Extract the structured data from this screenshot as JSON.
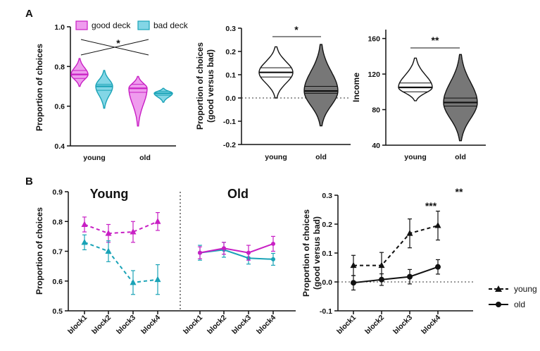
{
  "panel_labels": {
    "a": "A",
    "b": "B"
  },
  "colors": {
    "magenta": "#c81fc4",
    "teal": "#1aa3b7",
    "magenta_fill": "#ef9cee",
    "teal_fill": "#83d6e6",
    "grey": "#777777",
    "black": "#111111"
  },
  "chart_data": [
    {
      "id": "A1",
      "type": "violin",
      "ylabel": "Proportion of choices",
      "ylim": [
        0.4,
        1.0
      ],
      "yticks": [
        "0.4",
        "0.6",
        "0.8",
        "1.0"
      ],
      "categories": [
        "young",
        "old"
      ],
      "legend": [
        "good deck",
        "bad deck"
      ],
      "series": [
        {
          "name": "good deck",
          "young": {
            "median": 0.76,
            "q1": 0.74,
            "q3": 0.78,
            "min": 0.7,
            "max": 0.84
          },
          "old": {
            "median": 0.69,
            "q1": 0.67,
            "q3": 0.71,
            "min": 0.5,
            "max": 0.75
          }
        },
        {
          "name": "bad deck",
          "young": {
            "median": 0.7,
            "q1": 0.68,
            "q3": 0.71,
            "min": 0.59,
            "max": 0.78
          },
          "old": {
            "median": 0.665,
            "q1": 0.655,
            "q3": 0.675,
            "min": 0.62,
            "max": 0.69
          }
        }
      ],
      "significance": "*"
    },
    {
      "id": "A2",
      "type": "violin",
      "ylabel": "Proportion of choices",
      "ylabel2": "(good versus bad)",
      "ylim": [
        -0.2,
        0.3
      ],
      "yticks": [
        "-0.2",
        "-0.1",
        "0.0",
        "0.1",
        "0.2",
        "0.3"
      ],
      "categories": [
        "young",
        "old"
      ],
      "groups": [
        {
          "name": "young",
          "median": 0.11,
          "q1": 0.09,
          "q3": 0.13,
          "min": 0.0,
          "max": 0.22
        },
        {
          "name": "old",
          "median": 0.03,
          "q1": 0.02,
          "q3": 0.05,
          "min": -0.12,
          "max": 0.23
        }
      ],
      "reference_line": 0,
      "significance": "*"
    },
    {
      "id": "A3",
      "type": "violin",
      "ylabel": "Income",
      "ylim": [
        40,
        170
      ],
      "yticks": [
        "40",
        "80",
        "120",
        "160"
      ],
      "categories": [
        "young",
        "old"
      ],
      "groups": [
        {
          "name": "young",
          "median": 105,
          "q1": 100,
          "q3": 110,
          "min": 90,
          "max": 138
        },
        {
          "name": "old",
          "median": 88,
          "q1": 84,
          "q3": 93,
          "min": 45,
          "max": 142
        }
      ],
      "significance": "**"
    },
    {
      "id": "B1",
      "type": "line",
      "ylabel": "Proportion of choices",
      "ylim": [
        0.5,
        0.9
      ],
      "yticks": [
        "0.5",
        "0.6",
        "0.7",
        "0.8",
        "0.9"
      ],
      "categories": [
        "block1",
        "block2",
        "block3",
        "block4"
      ],
      "groups": [
        {
          "title": "Young",
          "series": [
            {
              "deck": "good",
              "values": [
                0.79,
                0.76,
                0.765,
                0.8
              ],
              "errors": [
                0.025,
                0.03,
                0.035,
                0.03
              ]
            },
            {
              "deck": "bad",
              "values": [
                0.73,
                0.7,
                0.595,
                0.605
              ],
              "errors": [
                0.025,
                0.035,
                0.04,
                0.05
              ]
            }
          ]
        },
        {
          "title": "Old",
          "series": [
            {
              "deck": "good",
              "values": [
                0.695,
                0.71,
                0.695,
                0.725
              ],
              "errors": [
                0.02,
                0.02,
                0.025,
                0.025
              ]
            },
            {
              "deck": "bad",
              "values": [
                0.695,
                0.705,
                0.677,
                0.673
              ],
              "errors": [
                0.025,
                0.025,
                0.02,
                0.02
              ]
            }
          ]
        }
      ]
    },
    {
      "id": "B2",
      "type": "line",
      "ylabel": "Proportion of choices",
      "ylabel2": "(good versus bad)",
      "ylim": [
        -0.1,
        0.3
      ],
      "yticks": [
        "-0.1",
        "0.0",
        "0.1",
        "0.2",
        "0.3"
      ],
      "categories": [
        "block1",
        "block2",
        "block3",
        "block4"
      ],
      "series": [
        {
          "name": "young",
          "values": [
            0.057,
            0.057,
            0.168,
            0.195
          ],
          "errors": [
            0.035,
            0.045,
            0.05,
            0.05
          ]
        },
        {
          "name": "old",
          "values": [
            -0.003,
            0.008,
            0.018,
            0.052
          ],
          "errors": [
            0.025,
            0.02,
            0.025,
            0.025
          ]
        }
      ],
      "annotations": [
        "***",
        "**"
      ]
    }
  ]
}
